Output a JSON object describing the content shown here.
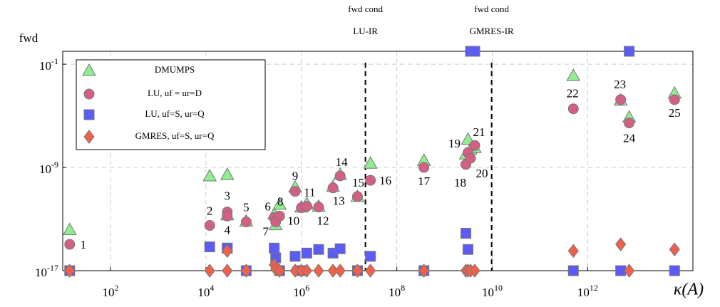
{
  "chart_data": {
    "type": "scatter",
    "x_label": "κ(A)",
    "y_label": "fwd",
    "xscale": "log",
    "yscale": "log",
    "grid": true,
    "legend": "upper left",
    "xlim": [
      10,
      160000000000000.0
    ],
    "ylim": [
      1e-17,
      1
    ],
    "xticks": [
      {
        "value": 100,
        "label": "102"
      },
      {
        "value": 10000,
        "label": "104"
      },
      {
        "value": 1000000,
        "label": "106"
      },
      {
        "value": 100000000,
        "label": "108"
      },
      {
        "value": 10000000000,
        "label": "1010"
      },
      {
        "value": 1000000000000,
        "label": "1012"
      }
    ],
    "yticks": [
      {
        "value": 1e-17,
        "label": "10-17"
      },
      {
        "value": 1e-09,
        "label": "10-9"
      },
      {
        "value": 0.1,
        "label": "10-1"
      }
    ],
    "vlines": [
      {
        "x": 22000000.0,
        "label": [
          "fwd cond",
          "LU-IR"
        ]
      },
      {
        "x": 9700000000.0,
        "label": [
          "fwd cond",
          "GMRES-IR"
        ]
      }
    ],
    "x": [
      14,
      12000,
      28000,
      28000,
      70000,
      270000,
      290000,
      350000,
      740000,
      1000000,
      1300000,
      2300000,
      4600000,
      6500000,
      15000000,
      28000000,
      370000000,
      2800000000,
      3100000000,
      3500000000,
      4300000000,
      500000000000,
      4900000000000,
      7400000000000,
      66000000000000
    ],
    "point_labels": [
      "1",
      "2",
      "3",
      "4",
      "5",
      "6",
      "7",
      "8",
      "9",
      "10",
      "11",
      "12",
      "13",
      "14",
      "15",
      "16",
      "17",
      "18",
      "19",
      "20",
      "21",
      "22",
      "23",
      "24",
      "25"
    ],
    "series": [
      {
        "name": "DMUMPS",
        "color": "#90ee90",
        "marker": "triangle",
        "values": [
          1.5e-14,
          2.2e-10,
          2.8e-10,
          2.1e-13,
          6.9e-14,
          2.4e-13,
          3.6e-14,
          1.4e-12,
          3e-11,
          8.5e-13,
          1.6e-12,
          9.8e-13,
          3.3e-11,
          2.8e-10,
          5.6e-12,
          2.1e-09,
          3.5e-09,
          1.1e-08,
          1.5e-07,
          2.6e-08,
          3.4e-08,
          0.013,
          0.00016,
          7.8e-06,
          0.00056
        ]
      },
      {
        "name": "LU, uf = ur=D",
        "color": "#d36083",
        "marker": "circle",
        "values": [
          1.1e-15,
          3.2e-14,
          3.5e-13,
          1.7e-13,
          6e-14,
          1.3e-13,
          6e-14,
          1.7e-13,
          1.4e-11,
          7.6e-13,
          9.8e-13,
          8.5e-13,
          2.6e-11,
          2.2e-10,
          5.6e-12,
          1e-10,
          1e-09,
          1.7e-09,
          1.4e-08,
          5.1e-09,
          5e-08,
          3.5e-05,
          0.00018,
          2.8e-06,
          0.00018
        ]
      },
      {
        "name": "LU, uf=S, ur=Q",
        "color": "#5b5bf5",
        "marker": "square",
        "values": [
          1e-17,
          7e-16,
          5.6e-16,
          5.6e-16,
          1e-17,
          5.6e-16,
          9.8e-17,
          1e-17,
          1.3e-16,
          1e-17,
          2.3e-16,
          4.4e-16,
          2.3e-16,
          5e-16,
          1e-17,
          1.3e-16,
          1e-17,
          7.9e-15,
          4.4e-16,
          1,
          1,
          1e-17,
          1e-17,
          1,
          1e-17
        ]
      },
      {
        "name": "GMRES, uf=S, ur=Q",
        "color": "#f0604a",
        "marker": "diamond",
        "values": [
          1e-17,
          1e-17,
          1e-17,
          3.4e-16,
          1e-17,
          2.8e-17,
          1.3e-17,
          1e-17,
          1e-17,
          1e-17,
          1e-17,
          1e-17,
          1e-17,
          1e-17,
          1e-17,
          1e-17,
          1e-17,
          1e-17,
          1e-17,
          1e-17,
          1e-17,
          3.4e-16,
          1.1e-15,
          1e-17,
          4.4e-16
        ]
      }
    ]
  }
}
